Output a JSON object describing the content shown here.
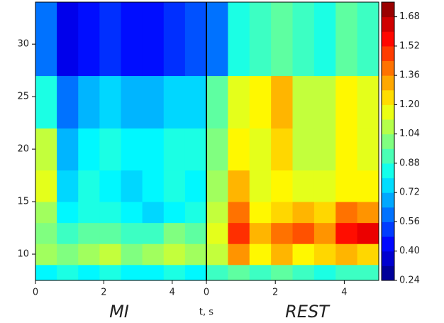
{
  "chart_data": [
    {
      "type": "heatmap",
      "label": "MI",
      "xlabel": "t, s",
      "xlim": [
        0,
        5
      ],
      "xticks": [
        0,
        2,
        4
      ],
      "ylim": [
        7.5,
        34
      ],
      "yticks": [
        10,
        15,
        20,
        25,
        30
      ],
      "xbins": [
        0,
        0.625,
        1.25,
        1.875,
        2.5,
        3.125,
        3.75,
        4.375,
        5
      ],
      "ybins": [
        7.5,
        9,
        11,
        13,
        15,
        18,
        22,
        27,
        34
      ],
      "z": [
        [
          0.8,
          0.85,
          0.8,
          0.85,
          0.8,
          0.8,
          0.85,
          0.8
        ],
        [
          1.05,
          1.0,
          1.05,
          1.1,
          1.0,
          1.05,
          1.1,
          1.05
        ],
        [
          1.0,
          0.9,
          0.95,
          0.95,
          0.9,
          0.9,
          1.0,
          0.95
        ],
        [
          1.05,
          0.8,
          0.85,
          0.85,
          0.8,
          0.75,
          0.8,
          0.85
        ],
        [
          1.15,
          0.75,
          0.85,
          0.8,
          0.75,
          0.8,
          0.85,
          0.8
        ],
        [
          1.1,
          0.7,
          0.8,
          0.85,
          0.8,
          0.8,
          0.85,
          0.85
        ],
        [
          0.85,
          0.6,
          0.7,
          0.75,
          0.7,
          0.7,
          0.75,
          0.75
        ],
        [
          0.6,
          0.4,
          0.45,
          0.5,
          0.45,
          0.45,
          0.5,
          0.55
        ]
      ],
      "colormap": "jet",
      "colorbar": {
        "lim": [
          0.24,
          1.76
        ],
        "ticks": [
          {
            "value": 0.24,
            "label": "0.24"
          },
          {
            "value": 0.4,
            "label": "0.40"
          },
          {
            "value": 0.56,
            "label": "0.56"
          },
          {
            "value": 0.72,
            "label": "0.72"
          },
          {
            "value": 0.88,
            "label": "0.88"
          },
          {
            "value": 1.04,
            "label": "1.04"
          },
          {
            "value": 1.2,
            "label": "1.20"
          },
          {
            "value": 1.36,
            "label": "1.36"
          },
          {
            "value": 1.52,
            "label": "1.52"
          },
          {
            "value": 1.68,
            "label": "1.68"
          }
        ]
      }
    },
    {
      "type": "heatmap",
      "label": "REST",
      "xlim": [
        0,
        5
      ],
      "xticks": [
        0,
        2,
        4
      ],
      "xbins": [
        0,
        0.625,
        1.25,
        1.875,
        2.5,
        3.125,
        3.75,
        4.375,
        5
      ],
      "ybins": [
        7.5,
        9,
        11,
        13,
        15,
        18,
        22,
        27,
        34
      ],
      "z": [
        [
          0.9,
          0.95,
          0.9,
          0.95,
          0.9,
          0.85,
          0.9,
          0.9
        ],
        [
          1.1,
          1.35,
          1.2,
          1.3,
          1.2,
          1.25,
          1.3,
          1.25
        ],
        [
          1.15,
          1.5,
          1.3,
          1.4,
          1.45,
          1.35,
          1.55,
          1.6
        ],
        [
          1.1,
          1.4,
          1.2,
          1.25,
          1.3,
          1.25,
          1.4,
          1.35
        ],
        [
          1.05,
          1.3,
          1.15,
          1.2,
          1.15,
          1.15,
          1.2,
          1.2
        ],
        [
          1.0,
          1.2,
          1.15,
          1.25,
          1.1,
          1.1,
          1.2,
          1.15
        ],
        [
          0.95,
          1.15,
          1.2,
          1.3,
          1.1,
          1.1,
          1.2,
          1.15
        ],
        [
          0.6,
          0.85,
          0.9,
          0.95,
          0.9,
          0.85,
          0.95,
          0.9
        ]
      ]
    }
  ]
}
